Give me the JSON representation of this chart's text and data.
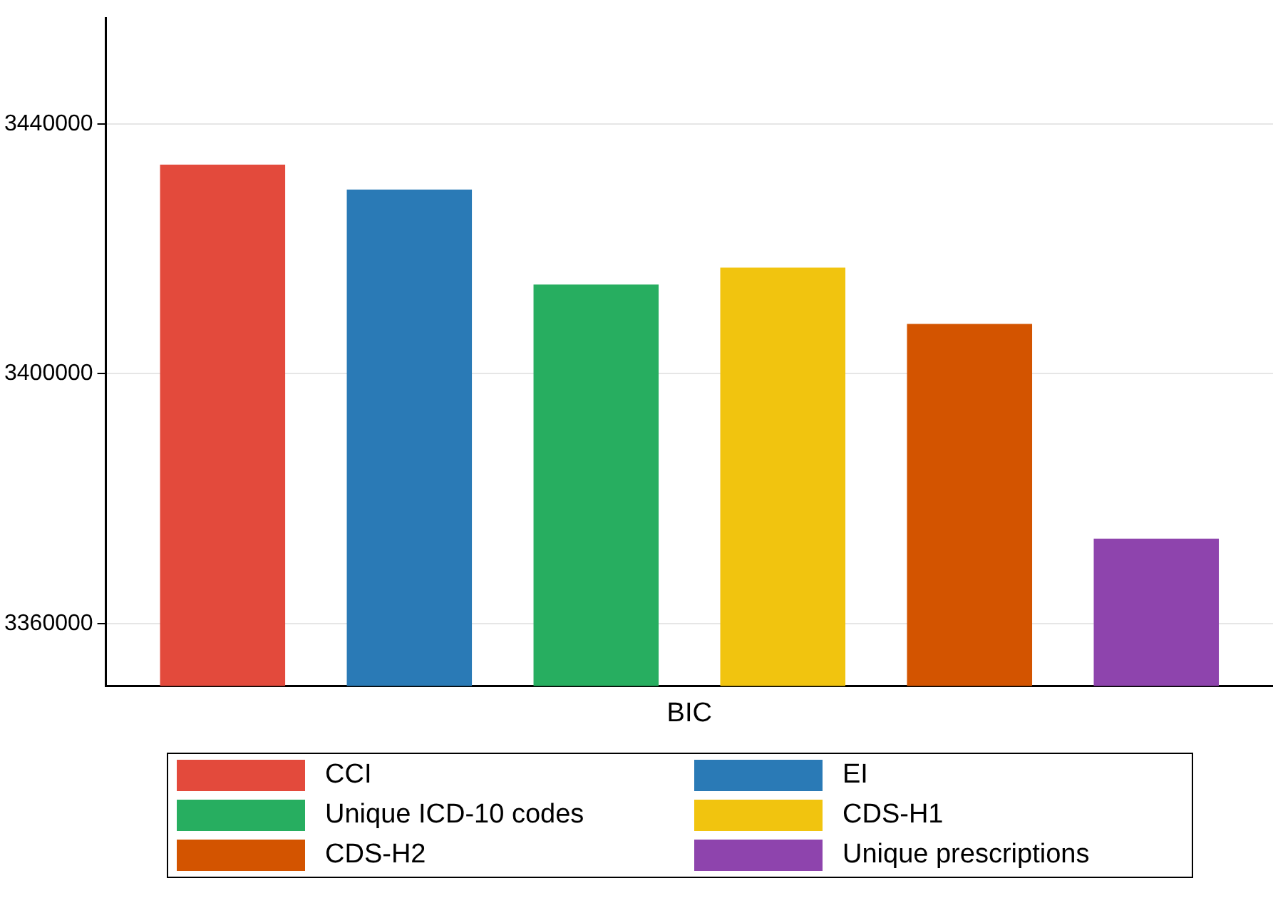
{
  "chart_data": {
    "type": "bar",
    "categories": [
      "BIC"
    ],
    "series": [
      {
        "name": "CCI",
        "color": "#e34a3c",
        "values": [
          3433500
        ]
      },
      {
        "name": "EI",
        "color": "#2a7ab6",
        "values": [
          3429500
        ]
      },
      {
        "name": "Unique ICD-10 codes",
        "color": "#27ae60",
        "values": [
          3414300
        ]
      },
      {
        "name": "CDS-H1",
        "color": "#f1c40f",
        "values": [
          3417000
        ]
      },
      {
        "name": "CDS-H2",
        "color": "#d35400",
        "values": [
          3408000
        ]
      },
      {
        "name": "Unique prescriptions",
        "color": "#8e44ad",
        "values": [
          3373600
        ]
      }
    ],
    "ylim": [
      3350000,
      3457000
    ],
    "yticks": [
      3360000,
      3400000,
      3440000
    ],
    "grid": "y",
    "legend": "bottom"
  }
}
